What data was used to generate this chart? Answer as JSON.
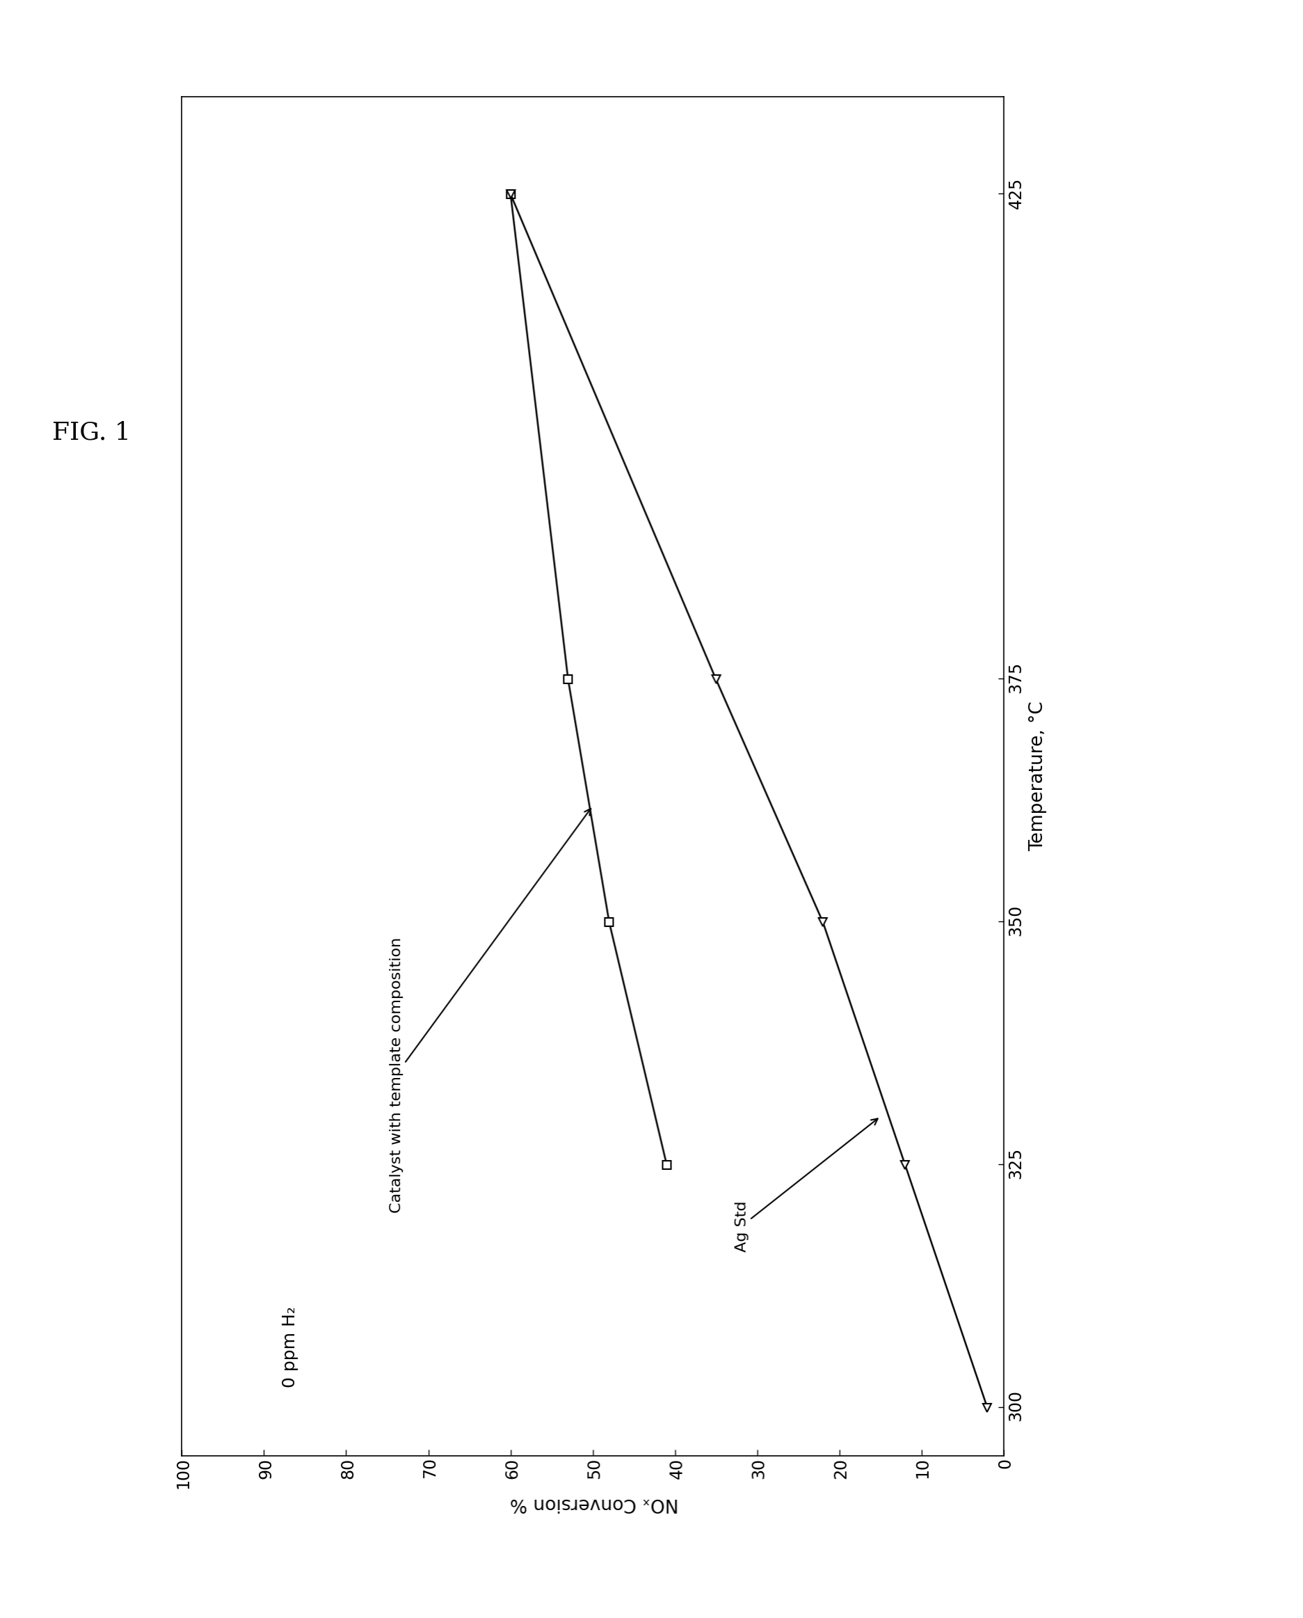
{
  "title": "FIG. 1",
  "xlabel": "Temperature, °C",
  "ylabel": "NOₓ Conversion %",
  "annotation_h2": "0 ppm H₂",
  "annotation_catalyst": "Catalyst with template composition",
  "annotation_ag_std": "Ag Std",
  "xlim": [
    295,
    435
  ],
  "ylim": [
    0,
    100
  ],
  "xticks": [
    300,
    325,
    350,
    375,
    425
  ],
  "yticks": [
    0,
    10,
    20,
    30,
    40,
    50,
    60,
    70,
    80,
    90,
    100
  ],
  "series_square": {
    "x": [
      325,
      350,
      375,
      425
    ],
    "y": [
      41,
      48,
      53,
      60
    ],
    "marker": "s",
    "markersize": 9,
    "linewidth": 1.8
  },
  "series_triangle": {
    "x": [
      300,
      325,
      350,
      375,
      425
    ],
    "y": [
      2,
      12,
      22,
      35,
      60
    ],
    "marker": "<",
    "markersize": 9,
    "linewidth": 1.8
  },
  "background_color": "#ffffff",
  "page_width": 18.74,
  "page_height": 23.25,
  "font_size_title": 26,
  "font_size_labels": 19,
  "font_size_ticks": 17,
  "font_size_annotations": 16,
  "font_size_h2": 18
}
